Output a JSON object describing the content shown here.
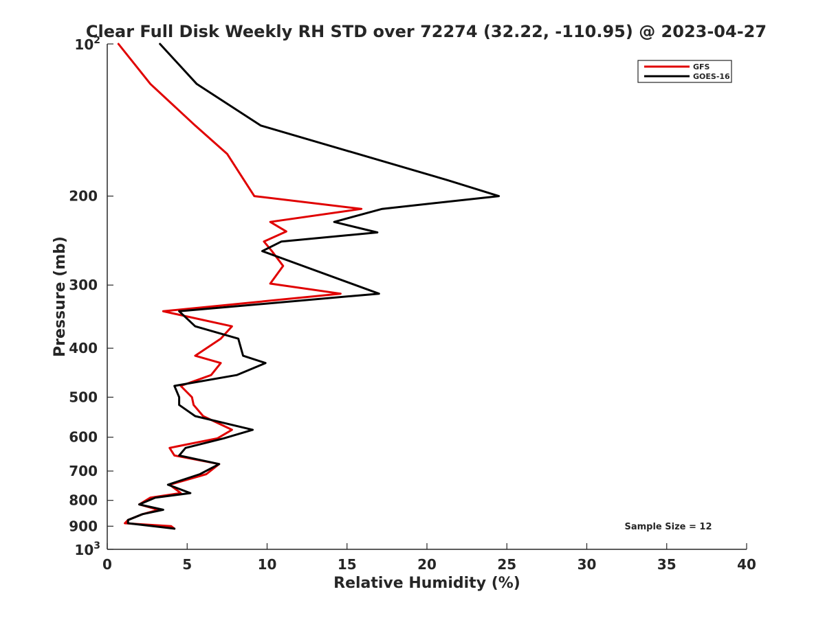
{
  "chart_data": {
    "type": "line",
    "title": "Clear Full Disk Weekly RH STD over 72274 (32.22, -110.95) @ 2023-04-27",
    "xlabel": "Relative Humidity (%)",
    "ylabel": "Pressure (mb)",
    "xlim": [
      0,
      40
    ],
    "ylim": [
      100,
      1000
    ],
    "y_scale": "log",
    "y_reversed": true,
    "x_ticks": [
      0,
      5,
      10,
      15,
      20,
      25,
      30,
      35,
      40
    ],
    "y_ticks": [
      {
        "value": 100,
        "label": "10",
        "sup": "2"
      },
      {
        "value": 200,
        "label": "200",
        "sup": ""
      },
      {
        "value": 300,
        "label": "300",
        "sup": ""
      },
      {
        "value": 400,
        "label": "400",
        "sup": ""
      },
      {
        "value": 500,
        "label": "500",
        "sup": ""
      },
      {
        "value": 600,
        "label": "600",
        "sup": ""
      },
      {
        "value": 700,
        "label": "700",
        "sup": ""
      },
      {
        "value": 800,
        "label": "800",
        "sup": ""
      },
      {
        "value": 900,
        "label": "900",
        "sup": ""
      },
      {
        "value": 1000,
        "label": "10",
        "sup": "3"
      }
    ],
    "grid": false,
    "legend_position": "top-right",
    "annotation": "Sample Size = 12",
    "series": [
      {
        "name": "GFS",
        "color": "#e00000",
        "points": [
          [
            0.7,
            100
          ],
          [
            2.7,
            120
          ],
          [
            5.5,
            145
          ],
          [
            7.5,
            165
          ],
          [
            9.2,
            200
          ],
          [
            15.9,
            212
          ],
          [
            10.2,
            225
          ],
          [
            11.2,
            235
          ],
          [
            9.8,
            246
          ],
          [
            10.3,
            257
          ],
          [
            11.0,
            275
          ],
          [
            10.2,
            298
          ],
          [
            14.6,
            312
          ],
          [
            3.5,
            338
          ],
          [
            7.8,
            362
          ],
          [
            7.1,
            383
          ],
          [
            5.5,
            414
          ],
          [
            7.1,
            428
          ],
          [
            6.5,
            452
          ],
          [
            4.6,
            475
          ],
          [
            5.3,
            500
          ],
          [
            5.4,
            518
          ],
          [
            6.0,
            545
          ],
          [
            7.8,
            580
          ],
          [
            6.9,
            603
          ],
          [
            3.9,
            630
          ],
          [
            4.2,
            652
          ],
          [
            7.0,
            678
          ],
          [
            6.2,
            710
          ],
          [
            3.9,
            745
          ],
          [
            4.6,
            774
          ],
          [
            2.7,
            790
          ],
          [
            2.0,
            815
          ],
          [
            3.2,
            835
          ],
          [
            2.2,
            852
          ],
          [
            1.3,
            875
          ],
          [
            1.1,
            888
          ],
          [
            4.0,
            900
          ],
          [
            4.2,
            910
          ]
        ]
      },
      {
        "name": "GOES-16",
        "color": "#000000",
        "points": [
          [
            3.3,
            100
          ],
          [
            5.6,
            120
          ],
          [
            9.6,
            145
          ],
          [
            21.3,
            186
          ],
          [
            24.5,
            200
          ],
          [
            17.2,
            212
          ],
          [
            14.2,
            225
          ],
          [
            16.9,
            236
          ],
          [
            10.9,
            246
          ],
          [
            9.7,
            257
          ],
          [
            17.0,
            312
          ],
          [
            4.5,
            338
          ],
          [
            5.5,
            362
          ],
          [
            8.2,
            383
          ],
          [
            8.5,
            414
          ],
          [
            9.9,
            428
          ],
          [
            8.1,
            452
          ],
          [
            4.2,
            475
          ],
          [
            4.5,
            500
          ],
          [
            4.5,
            518
          ],
          [
            5.5,
            545
          ],
          [
            9.1,
            580
          ],
          [
            7.3,
            603
          ],
          [
            4.9,
            630
          ],
          [
            4.5,
            652
          ],
          [
            7.0,
            678
          ],
          [
            5.8,
            710
          ],
          [
            3.8,
            745
          ],
          [
            5.2,
            774
          ],
          [
            3.0,
            790
          ],
          [
            2.0,
            815
          ],
          [
            3.5,
            835
          ],
          [
            2.2,
            852
          ],
          [
            1.3,
            875
          ],
          [
            1.3,
            888
          ],
          [
            4.2,
            910
          ]
        ]
      }
    ]
  }
}
